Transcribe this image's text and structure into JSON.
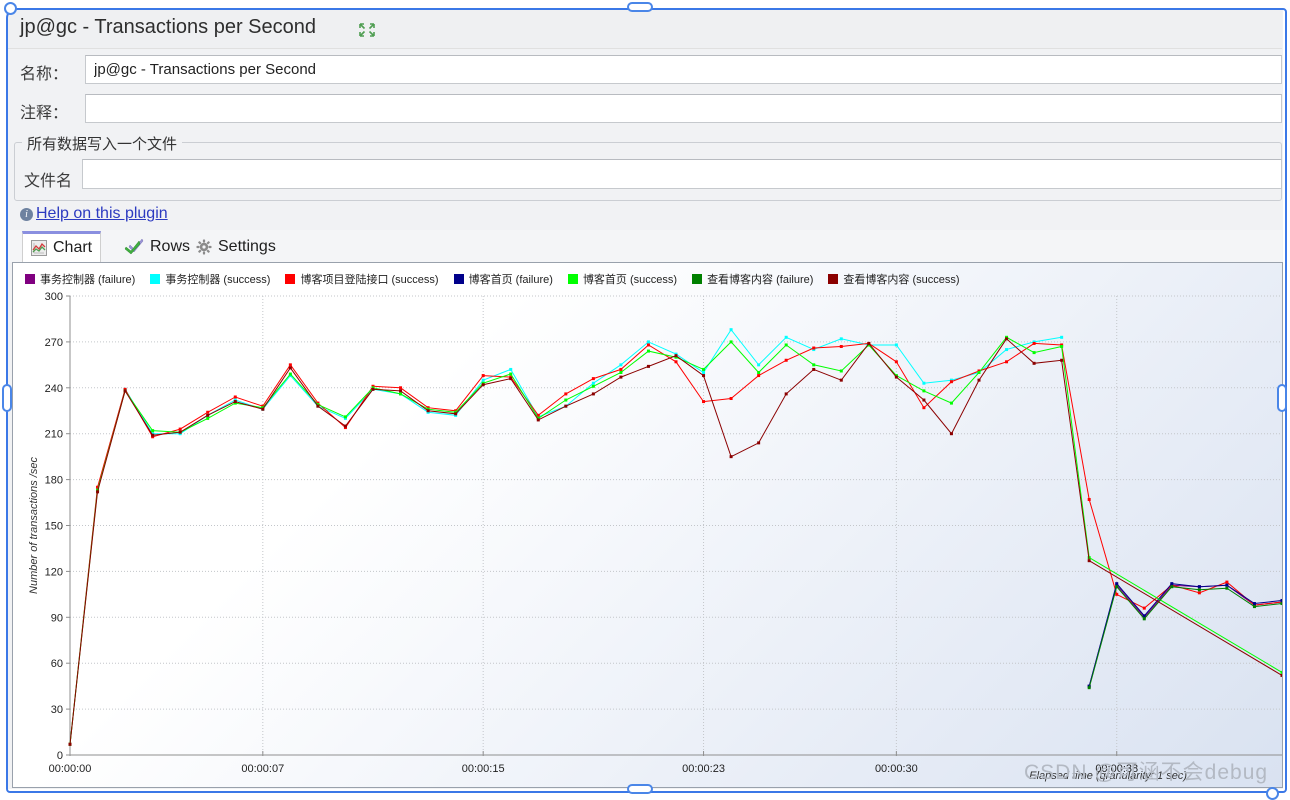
{
  "window": {
    "title": "jp@gc - Transactions per Second",
    "expand_icon": "expand-arrows-icon"
  },
  "form": {
    "name_label": "名称：",
    "name_value": "jp@gc - Transactions per Second",
    "comment_label": "注释：",
    "comment_value": "",
    "file_group_title": "所有数据写入一个文件",
    "filename_label": "文件名",
    "filename_value": ""
  },
  "help": {
    "icon": "info-icon",
    "label": "Help on this plugin"
  },
  "tabs": [
    {
      "label": "Chart",
      "icon": "chart-icon",
      "selected": true
    },
    {
      "label": "Rows",
      "icon": "double-check-icon",
      "selected": false
    },
    {
      "label": "Settings",
      "icon": "gear-icon",
      "selected": false
    }
  ],
  "watermark": "CSDN @可涵不会debug",
  "chart_data": {
    "type": "line",
    "title": "",
    "xlabel": "Elapsed time (granularity: 1 sec)",
    "ylabel": "Number of transactions /sec",
    "xlim": [
      0,
      44
    ],
    "ylim": [
      0,
      300
    ],
    "ytick_step": 30,
    "yticks": [
      0,
      30,
      60,
      90,
      120,
      150,
      180,
      210,
      240,
      270,
      300
    ],
    "xticks": [
      {
        "t": 0,
        "label": "00:00:00"
      },
      {
        "t": 7,
        "label": "00:00:07"
      },
      {
        "t": 15,
        "label": "00:00:15"
      },
      {
        "t": 23,
        "label": "00:00:23"
      },
      {
        "t": 30,
        "label": "00:00:30"
      },
      {
        "t": 38,
        "label": "00:00:38"
      }
    ],
    "grid": true,
    "legend_position": "top-left",
    "x_is_seconds": true,
    "series": [
      {
        "name": "事务控制器 (failure)",
        "color": "#800080",
        "values": [
          null,
          null,
          null,
          null,
          null,
          null,
          null,
          null,
          null,
          null,
          null,
          null,
          null,
          null,
          null,
          null,
          null,
          null,
          null,
          null,
          null,
          null,
          null,
          null,
          null,
          null,
          null,
          null,
          null,
          null,
          null,
          null,
          null,
          null,
          null,
          null,
          null,
          45,
          111,
          90,
          111,
          110,
          111,
          98,
          100
        ]
      },
      {
        "name": "事务控制器 (success)",
        "color": "#00ffff",
        "values": [
          7,
          174,
          239,
          210,
          210,
          222,
          232,
          226,
          248,
          228,
          220,
          239,
          236,
          224,
          222,
          245,
          252,
          221,
          228,
          243,
          255,
          270,
          262,
          250,
          278,
          255,
          273,
          265,
          272,
          268,
          268,
          243,
          245,
          250,
          265,
          270,
          273,
          null,
          null,
          null,
          null,
          null,
          null,
          null,
          null
        ]
      },
      {
        "name": "博客项目登陆接口 (success)",
        "color": "#ff0000",
        "values": [
          7,
          175,
          239,
          208,
          213,
          224,
          234,
          228,
          255,
          230,
          214,
          241,
          240,
          227,
          225,
          248,
          247,
          222,
          236,
          246,
          252,
          268,
          257,
          231,
          233,
          248,
          258,
          266,
          267,
          269,
          257,
          227,
          244,
          251,
          257,
          269,
          268,
          167,
          105,
          96,
          111,
          106,
          113,
          98,
          100
        ]
      },
      {
        "name": "博客首页 (failure)",
        "color": "#00008b",
        "values": [
          null,
          null,
          null,
          null,
          null,
          null,
          null,
          null,
          null,
          null,
          null,
          null,
          null,
          null,
          null,
          null,
          null,
          null,
          null,
          null,
          null,
          null,
          null,
          null,
          null,
          null,
          null,
          null,
          null,
          null,
          null,
          null,
          null,
          null,
          null,
          null,
          null,
          45,
          112,
          91,
          112,
          110,
          111,
          99,
          101
        ]
      },
      {
        "name": "博客首页 (success)",
        "color": "#00ff00",
        "values": [
          7,
          173,
          238,
          212,
          211,
          220,
          230,
          227,
          249,
          229,
          221,
          240,
          236,
          226,
          224,
          243,
          249,
          220,
          232,
          241,
          250,
          264,
          260,
          252,
          270,
          250,
          268,
          255,
          251,
          268,
          248,
          238,
          230,
          250,
          273,
          263,
          267,
          129,
          null,
          null,
          null,
          null,
          null,
          null,
          54
        ]
      },
      {
        "name": "查看博客内容 (failure)",
        "color": "#008000",
        "values": [
          null,
          null,
          null,
          null,
          null,
          null,
          null,
          null,
          null,
          null,
          null,
          null,
          null,
          null,
          null,
          null,
          null,
          null,
          null,
          null,
          null,
          null,
          null,
          null,
          null,
          null,
          null,
          null,
          null,
          null,
          null,
          null,
          null,
          null,
          null,
          null,
          null,
          44,
          110,
          89,
          110,
          108,
          109,
          97,
          99
        ]
      },
      {
        "name": "查看博客内容 (success)",
        "color": "#8b0000",
        "values": [
          7,
          172,
          238,
          209,
          211,
          222,
          231,
          226,
          253,
          228,
          215,
          239,
          238,
          225,
          223,
          242,
          246,
          219,
          228,
          236,
          247,
          254,
          261,
          248,
          195,
          204,
          236,
          252,
          245,
          269,
          247,
          232,
          210,
          245,
          272,
          256,
          258,
          127,
          null,
          null,
          null,
          null,
          null,
          null,
          52
        ]
      }
    ]
  }
}
